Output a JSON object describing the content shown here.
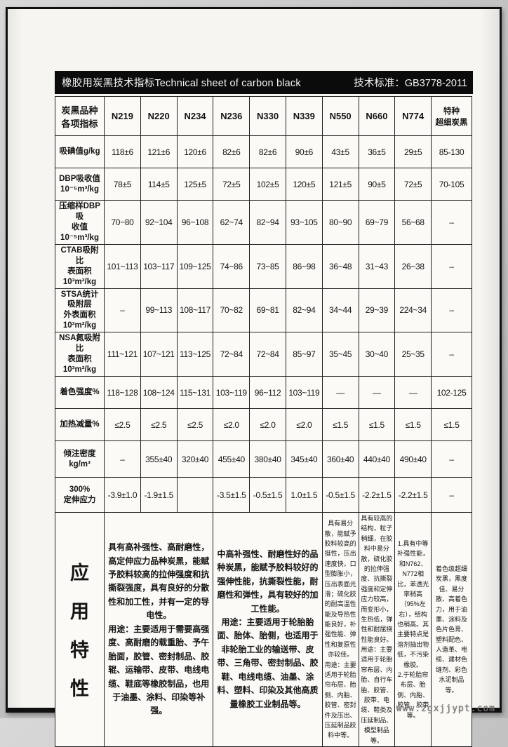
{
  "header": {
    "title_cn": "橡胶用炭黑技术指标",
    "title_en": "Technical sheet of carbon black",
    "standard_label": "技术标准：",
    "standard_value": "GB3778-2011"
  },
  "watermark": "www.zgxjjypt.com",
  "table": {
    "corner_header": "炭黑品种\n各项指标",
    "columns": [
      "N219",
      "N220",
      "N234",
      "N236",
      "N330",
      "N339",
      "N550",
      "N660",
      "N774"
    ],
    "last_column_header": "特种\n超细炭黑",
    "rows": [
      {
        "label": "吸碘值g/kg",
        "values": [
          "118±6",
          "121±6",
          "120±6",
          "82±6",
          "82±6",
          "90±6",
          "43±5",
          "36±5",
          "29±5",
          "85-130"
        ]
      },
      {
        "label": "DBP吸收值\n10⁻⁵m³/kg",
        "values": [
          "78±5",
          "114±5",
          "125±5",
          "72±5",
          "102±5",
          "120±5",
          "121±5",
          "90±5",
          "72±5",
          "70-105"
        ]
      },
      {
        "label": "压缩样DBP吸\n收值10⁻⁵m³/kg",
        "values": [
          "70~80",
          "92~104",
          "96~108",
          "62~74",
          "82~94",
          "93~105",
          "80~90",
          "69~79",
          "56~68",
          "–"
        ]
      },
      {
        "label": "CTAB吸附比\n表面积10³m²/kg",
        "values": [
          "101~113",
          "103~117",
          "109~125",
          "74~86",
          "73~85",
          "86~98",
          "36~48",
          "31~43",
          "26~38",
          "–"
        ]
      },
      {
        "label": "STSA统计吸附层\n外表面积10³m²/kg",
        "values": [
          "–",
          "99~113",
          "108~117",
          "70~82",
          "69~81",
          "82~94",
          "34~44",
          "29~39",
          "224~34",
          "–"
        ]
      },
      {
        "label": "NSA氮吸附比\n表面积10³m²/kg",
        "values": [
          "111~121",
          "107~121",
          "113~125",
          "72~84",
          "72~84",
          "85~97",
          "35~45",
          "30~40",
          "25~35",
          "–"
        ]
      },
      {
        "label": "着色强度%",
        "values": [
          "118~128",
          "108~124",
          "115~131",
          "103~119",
          "96~112",
          "103~119",
          "—",
          "—",
          "—",
          "102-125"
        ]
      },
      {
        "label": "加热减量%",
        "values": [
          "≤2.5",
          "≤2.5",
          "≤2.5",
          "≤2.0",
          "≤2.0",
          "≤2.0",
          "≤1.5",
          "≤1.5",
          "≤1.5",
          "≤1.5"
        ]
      },
      {
        "label": "倾注密度\nkg/m³",
        "values": [
          "–",
          "355±40",
          "320±40",
          "455±40",
          "380±40",
          "345±40",
          "360±40",
          "440±40",
          "490±40",
          "–"
        ]
      },
      {
        "label": "300%\n定伸应力",
        "values": [
          "-3.9±1.0",
          "-1.9±1.5",
          "",
          "-3.5±1.5",
          "-0.5±1.5",
          "1.0±1.5",
          "-0.5±1.5",
          "-2.2±1.5",
          "-2.2±1.5",
          "–"
        ]
      }
    ],
    "application": {
      "header": "应用特性",
      "blocks": [
        {
          "span": 3,
          "wide": true,
          "text": "具有高补强性、高耐磨性，高定伸应力品种炭黑，能赋予胶料较高的拉伸强度和抗撕裂强度，具有良好的分散性和加工性，并有一定的导电性。\n用途：主要适用于需要高强度、高耐磨的载重胎、予午胎面，胶管、密封制品、胶辊、运输带、皮带、电线电缆、鞋底等橡胶制品，也用于油墨、涂料、印染等补强。"
        },
        {
          "span": 3,
          "wide": true,
          "text": "中高补强性、耐磨性好的品种炭黑，能赋予胶料较好的强伸性能，抗撕裂性能，耐磨性和弹性，具有较好的加工性能。\n用途：主要适用于轮胎胎面、胎体、胎侧，也适用于非轮胎工业的输送带、皮带、三角带、密封制品、胶鞋、电线电缆、油墨、涂料、塑料、印染及其他高质量橡胶工业制品等。"
        },
        {
          "span": 1,
          "wide": false,
          "text": "具有易分散，能赋予胶料较高的挺性，压出速度快，口型膨胀小，压出表面光滑；硫化胶的耐高温性能及导热性能良好，补强性能、弹性和复原性亦较佳。\n用途：主要适用于轮胎帘布层、胎侧、内胎、胶管、密封件及压出、压延制品胶料中等。"
        },
        {
          "span": 1,
          "wide": false,
          "text": "具有较高的结构，粒子稍细，在胶料中易分散，硫化胶的拉伸强度、抗撕裂强度和定伸应力较高，而变形小，生热低，弹性和耐屈挠性能良好。\n用途：主要适用于轮胎帘布层、内胎、自行车胎、胶管、胶带、电缆、鞋类及压延制品、模型制品等。"
        },
        {
          "span": 1,
          "wide": false,
          "text": "1.具有中等补强性能，和N762、N772相比，苯透光率稍高（95%左右），结构也稍高。其主要特点是溶剂抽出物低，不污染橡胶。\n2.于轮胎帘布层、胎侧、内胎、胶管、胶带等。"
        },
        {
          "span": 1,
          "wide": false,
          "text": "着色级超细炭黑，黑度佳、易分散、高着色力，用于油墨、涂料及色片色膏、塑料配色、人造革、电缆、建材色缝剂、彩色水泥制品等。"
        }
      ]
    }
  }
}
